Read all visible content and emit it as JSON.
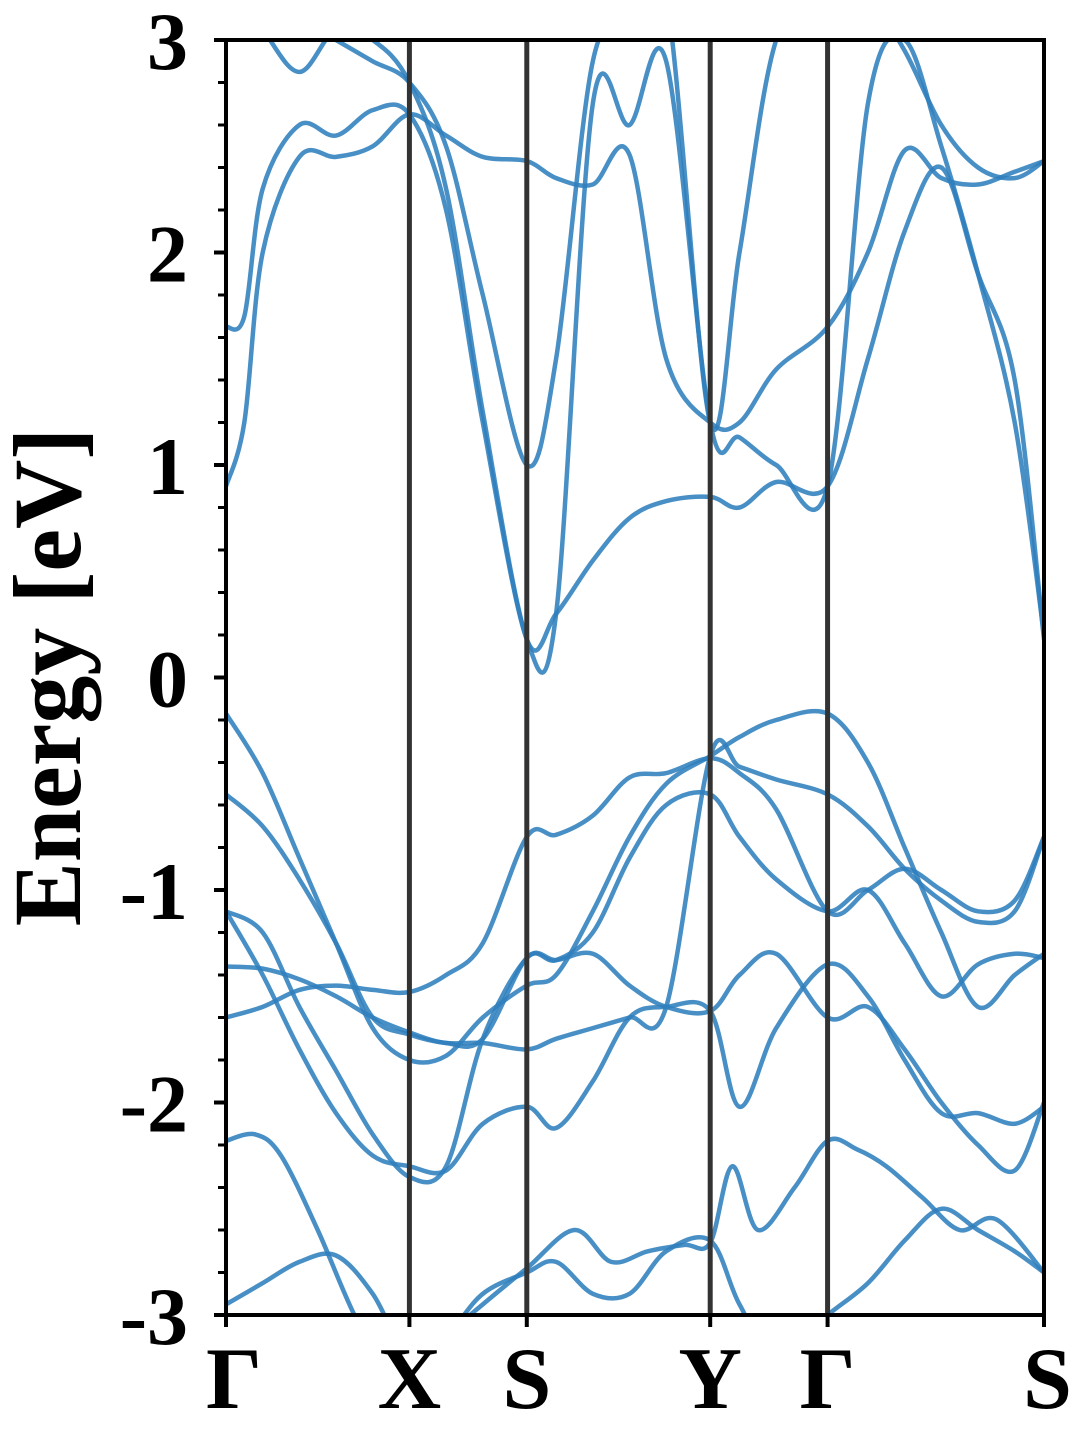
{
  "chart_data": {
    "type": "line",
    "title": "",
    "xlabel": "",
    "ylabel": "Energy [eV]",
    "ylim": [
      -3,
      3
    ],
    "y_major_ticks": [
      -3,
      -2,
      -1,
      0,
      1,
      2,
      3
    ],
    "y_tick_labels": [
      "-3",
      "-2",
      "-1",
      "0",
      "1",
      "2",
      "3"
    ],
    "y_minor_step": 0.2,
    "high_symmetry_points": [
      {
        "label": "Γ",
        "x": 0.0
      },
      {
        "label": "X",
        "x": 0.5
      },
      {
        "label": "S",
        "x": 0.82
      },
      {
        "label": "Y",
        "x": 1.32
      },
      {
        "label": "Γ",
        "x": 1.64
      },
      {
        "label": "S",
        "x": 2.23
      }
    ],
    "grid": false,
    "legend": "none",
    "line_color": "#2f7fbd",
    "vline_color": "#333333",
    "series": [
      {
        "x": [
          0,
          0.1,
          0.2,
          0.3,
          0.4,
          0.5,
          0.6,
          0.7,
          0.82,
          0.9,
          1.0,
          1.1,
          1.2,
          1.32,
          1.4,
          1.5,
          1.64,
          1.75,
          1.85,
          1.95,
          2.05,
          2.15,
          2.23
        ],
        "y": [
          -2.95,
          -2.85,
          -2.75,
          -2.72,
          -2.9,
          -3.2,
          -3.1,
          -2.9,
          -2.8,
          -2.75,
          -2.9,
          -2.9,
          -2.7,
          -2.65,
          -2.95,
          -3.2,
          -3.0,
          -2.85,
          -2.65,
          -2.5,
          -2.6,
          -2.7,
          -2.8
        ]
      },
      {
        "x": [
          0,
          0.08,
          0.15,
          0.25,
          0.35,
          0.45,
          0.5,
          0.6,
          0.7,
          0.82,
          0.95,
          1.05,
          1.15,
          1.25,
          1.32,
          1.38,
          1.45,
          1.55,
          1.64,
          1.72,
          1.8,
          1.9,
          2.0,
          2.1,
          2.23
        ],
        "y": [
          -2.18,
          -2.15,
          -2.25,
          -2.6,
          -3.0,
          -3.3,
          -3.3,
          -3.1,
          -2.95,
          -2.78,
          -2.6,
          -2.75,
          -2.7,
          -2.67,
          -2.66,
          -2.3,
          -2.6,
          -2.4,
          -2.18,
          -2.22,
          -2.3,
          -2.45,
          -2.6,
          -2.55,
          -2.8
        ]
      },
      {
        "x": [
          0,
          0.1,
          0.2,
          0.3,
          0.4,
          0.5,
          0.6,
          0.7,
          0.82,
          0.9,
          1.0,
          1.1,
          1.2,
          1.32,
          1.4,
          1.5,
          1.64,
          1.75,
          1.85,
          1.95,
          2.05,
          2.15,
          2.23
        ],
        "y": [
          -1.1,
          -1.4,
          -1.75,
          -2.05,
          -2.25,
          -2.3,
          -2.32,
          -2.1,
          -2.02,
          -2.12,
          -1.9,
          -1.6,
          -1.55,
          -1.57,
          -2.02,
          -1.65,
          -1.35,
          -1.5,
          -1.8,
          -2.05,
          -2.05,
          -2.1,
          -2.02
        ]
      },
      {
        "x": [
          0,
          0.1,
          0.2,
          0.3,
          0.4,
          0.5,
          0.6,
          0.7,
          0.82,
          0.9,
          1.0,
          1.1,
          1.2,
          1.32,
          1.4,
          1.5,
          1.64,
          1.75,
          1.85,
          1.95,
          2.05,
          2.15,
          2.23
        ],
        "y": [
          -1.1,
          -1.2,
          -1.55,
          -1.85,
          -2.15,
          -2.35,
          -2.3,
          -1.7,
          -1.32,
          -1.33,
          -1.3,
          -1.45,
          -1.55,
          -1.57,
          -1.4,
          -1.3,
          -1.6,
          -1.55,
          -1.75,
          -2.0,
          -2.2,
          -2.32,
          -2.0
        ]
      },
      {
        "x": [
          0,
          0.1,
          0.2,
          0.3,
          0.4,
          0.5,
          0.6,
          0.7,
          0.82,
          0.9,
          1.0,
          1.1,
          1.2,
          1.32,
          1.4,
          1.5,
          1.64,
          1.75,
          1.85,
          1.95,
          2.05,
          2.15,
          2.23
        ],
        "y": [
          -1.6,
          -1.55,
          -1.47,
          -1.45,
          -1.47,
          -1.48,
          -1.4,
          -1.25,
          -0.75,
          -0.74,
          -0.65,
          -0.47,
          -0.45,
          -0.38,
          -0.45,
          -0.62,
          -1.1,
          -1.0,
          -0.9,
          -1.0,
          -1.1,
          -1.05,
          -0.75
        ]
      },
      {
        "x": [
          0,
          0.1,
          0.2,
          0.3,
          0.4,
          0.5,
          0.6,
          0.7,
          0.82,
          0.9,
          1.0,
          1.1,
          1.2,
          1.32,
          1.4,
          1.5,
          1.64,
          1.75,
          1.85,
          1.95,
          2.05,
          2.15,
          2.23
        ],
        "y": [
          -1.36,
          -1.37,
          -1.42,
          -1.5,
          -1.6,
          -1.67,
          -1.72,
          -1.7,
          -1.32,
          -1.33,
          -1.2,
          -0.85,
          -0.6,
          -0.55,
          -0.75,
          -0.95,
          -1.1,
          -1.0,
          -1.25,
          -1.5,
          -1.35,
          -1.3,
          -1.32
        ]
      },
      {
        "x": [
          0,
          0.1,
          0.2,
          0.3,
          0.4,
          0.5,
          0.6,
          0.7,
          0.82,
          0.9,
          1.0,
          1.1,
          1.2,
          1.32,
          1.4,
          1.5,
          1.64,
          1.75,
          1.85,
          1.95,
          2.05,
          2.15,
          2.23
        ],
        "y": [
          -0.55,
          -0.7,
          -0.95,
          -1.25,
          -1.6,
          -1.68,
          -1.72,
          -1.72,
          -1.75,
          -1.7,
          -1.65,
          -1.6,
          -1.55,
          -0.37,
          -0.42,
          -0.48,
          -0.55,
          -0.7,
          -0.9,
          -1.05,
          -1.15,
          -1.1,
          -0.75
        ]
      },
      {
        "x": [
          0,
          0.1,
          0.2,
          0.3,
          0.4,
          0.5,
          0.6,
          0.7,
          0.82,
          0.9,
          1.0,
          1.1,
          1.2,
          1.32,
          1.4,
          1.5,
          1.64,
          1.75,
          1.85,
          1.95,
          2.05,
          2.15,
          2.23
        ],
        "y": [
          -0.17,
          -0.45,
          -0.85,
          -1.25,
          -1.65,
          -1.8,
          -1.78,
          -1.6,
          -1.45,
          -1.4,
          -1.1,
          -0.75,
          -0.5,
          -0.37,
          -0.28,
          -0.2,
          -0.17,
          -0.4,
          -0.8,
          -1.2,
          -1.55,
          -1.4,
          -1.3
        ]
      },
      {
        "x": [
          0,
          0.05,
          0.1,
          0.2,
          0.3,
          0.4,
          0.5,
          0.6,
          0.7,
          0.82,
          0.9,
          1.0,
          1.1,
          1.2,
          1.32,
          1.4,
          1.5,
          1.64,
          1.75,
          1.85,
          1.95,
          2.05,
          2.15,
          2.23
        ],
        "y": [
          0.9,
          1.2,
          2.0,
          2.45,
          2.45,
          2.5,
          2.65,
          2.55,
          2.45,
          2.43,
          2.35,
          2.32,
          2.46,
          1.5,
          1.2,
          1.2,
          1.45,
          1.65,
          2.0,
          2.48,
          2.35,
          2.32,
          2.38,
          2.43
        ]
      },
      {
        "x": [
          0,
          0.05,
          0.1,
          0.2,
          0.3,
          0.4,
          0.5,
          0.6,
          0.7,
          0.82,
          0.9,
          1.0,
          1.1,
          1.2,
          1.32,
          1.4,
          1.5,
          1.64,
          1.75,
          1.85,
          1.95,
          2.05,
          2.15,
          2.23
        ],
        "y": [
          1.65,
          1.7,
          2.3,
          2.6,
          2.55,
          2.67,
          2.65,
          2.2,
          1.2,
          0.18,
          0.3,
          0.55,
          0.75,
          0.83,
          0.85,
          0.8,
          0.92,
          0.9,
          1.5,
          2.1,
          2.4,
          1.9,
          1.4,
          0.18
        ]
      },
      {
        "x": [
          0,
          0.1,
          0.2,
          0.3,
          0.4,
          0.5,
          0.6,
          0.7,
          0.82,
          0.9,
          1.0,
          1.1,
          1.2,
          1.32,
          1.4,
          1.5,
          1.64,
          1.75,
          1.85,
          1.95,
          2.05,
          2.15,
          2.23
        ],
        "y": [
          3.3,
          3.05,
          2.85,
          3.05,
          3.0,
          2.8,
          2.3,
          1.25,
          0.18,
          0.3,
          2.7,
          2.6,
          2.9,
          1.2,
          1.13,
          1.0,
          0.9,
          2.7,
          3.0,
          2.5,
          1.9,
          1.2,
          0.2
        ]
      },
      {
        "x": [
          0,
          0.1,
          0.2,
          0.3,
          0.4,
          0.5,
          0.6,
          0.7,
          0.82,
          0.9,
          1.0,
          1.1,
          1.2,
          1.32,
          1.4,
          1.5,
          1.64,
          1.75,
          1.85,
          1.95,
          2.05,
          2.15,
          2.23
        ],
        "y": [
          3.4,
          3.3,
          3.1,
          3.0,
          2.9,
          2.8,
          2.5,
          1.8,
          1.0,
          1.5,
          2.9,
          3.1,
          3.2,
          1.2,
          2.0,
          3.0,
          3.3,
          3.2,
          2.95,
          2.6,
          2.4,
          2.35,
          2.43
        ]
      }
    ]
  }
}
